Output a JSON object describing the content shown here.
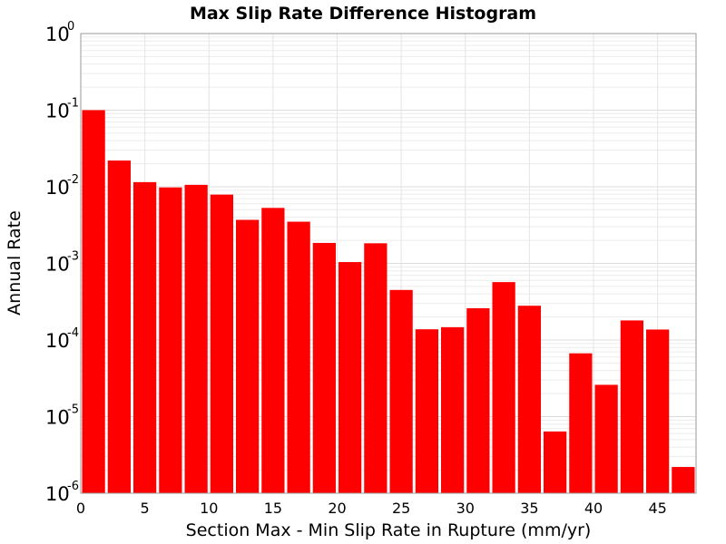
{
  "chart_data": {
    "type": "bar",
    "title": "Max Slip Rate Difference Histogram",
    "xlabel": "Section Max - Min Slip Rate in Rupture (mm/yr)",
    "ylabel": "Annual Rate",
    "xlim": [
      0,
      48
    ],
    "ylim": [
      1e-06,
      1
    ],
    "yscale": "log",
    "grid": true,
    "bar_color": "#ff0000",
    "bin_width": 2,
    "x": [
      1,
      3,
      5,
      7,
      9,
      11,
      13,
      15,
      17,
      19,
      21,
      23,
      25,
      27,
      29,
      31,
      33,
      35,
      37,
      39,
      41,
      43,
      45,
      47
    ],
    "values": [
      0.1,
      0.022,
      0.0115,
      0.0098,
      0.0106,
      0.0079,
      0.0037,
      0.0053,
      0.0035,
      0.00185,
      0.00104,
      0.00183,
      0.00045,
      0.000138,
      0.000147,
      0.00026,
      0.00057,
      0.00028,
      6.4e-06,
      6.7e-05,
      2.6e-05,
      0.00018,
      0.000137,
      2.2e-06
    ],
    "xticks": [
      "0",
      "5",
      "10",
      "15",
      "20",
      "25",
      "30",
      "35",
      "40",
      "45"
    ],
    "xtick_values": [
      0,
      5,
      10,
      15,
      20,
      25,
      30,
      35,
      40,
      45
    ],
    "yticks": [
      {
        "base": "10",
        "exp": "0",
        "value": 1
      },
      {
        "base": "10",
        "exp": "-1",
        "value": 0.1
      },
      {
        "base": "10",
        "exp": "-2",
        "value": 0.01
      },
      {
        "base": "10",
        "exp": "-3",
        "value": 0.001
      },
      {
        "base": "10",
        "exp": "-4",
        "value": 0.0001
      },
      {
        "base": "10",
        "exp": "-5",
        "value": 1e-05
      },
      {
        "base": "10",
        "exp": "-6",
        "value": 1e-06
      }
    ]
  }
}
